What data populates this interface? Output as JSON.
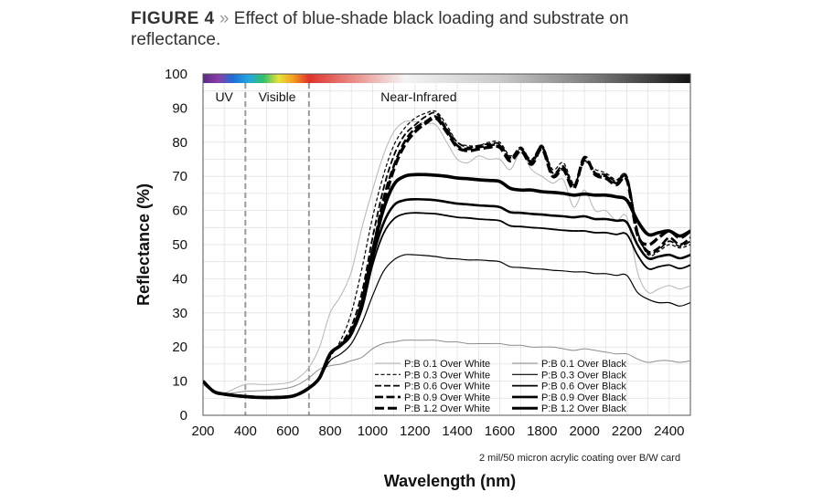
{
  "figure": {
    "label": "FIGURE 4",
    "separator": "»",
    "caption": "Effect of blue-shade black loading and substrate on reflectance."
  },
  "chart_data": {
    "type": "line",
    "title": "Effect of blue-shade black loading and substrate on reflectance.",
    "xlabel": "Wavelength (nm)",
    "ylabel": "Reflectance (%)",
    "xlim": [
      200,
      2500
    ],
    "ylim": [
      0,
      100
    ],
    "xticks": [
      200,
      400,
      600,
      800,
      1000,
      1200,
      1400,
      1600,
      1800,
      2000,
      2200,
      2400
    ],
    "yticks": [
      0,
      10,
      20,
      30,
      40,
      50,
      60,
      70,
      80,
      90,
      100
    ],
    "grid": true,
    "legend_position": "bottom-center",
    "regions": [
      {
        "label": "UV",
        "from": 200,
        "to": 400
      },
      {
        "label": "Visible",
        "from": 400,
        "to": 700
      },
      {
        "label": "Near-Infrared",
        "from": 700,
        "to": 2500
      }
    ],
    "region_boundaries": [
      400,
      700
    ],
    "spectrum_band_colors": [
      "#5b2a86",
      "#8a3da8",
      "#1f6fd6",
      "#22a6e0",
      "#33c06a",
      "#e8e23a",
      "#f29a1f",
      "#e0332b",
      "#f4f4f4",
      "#c9c9c9",
      "#7a7a7a",
      "#141414"
    ],
    "annotation": "2 mil/50 micron acrylic coating over B/W card",
    "x": [
      200,
      250,
      300,
      400,
      500,
      600,
      650,
      700,
      750,
      800,
      850,
      900,
      950,
      1000,
      1050,
      1100,
      1150,
      1200,
      1250,
      1300,
      1350,
      1400,
      1450,
      1500,
      1550,
      1600,
      1650,
      1700,
      1750,
      1800,
      1850,
      1900,
      1950,
      2000,
      2050,
      2100,
      2150,
      2200,
      2250,
      2300,
      2350,
      2400,
      2450,
      2500
    ],
    "series": [
      {
        "name": "P:B 0.1 Over White",
        "color": "#b5b5b5",
        "width": 1.0,
        "dash": "",
        "values": [
          9,
          7,
          6.5,
          9,
          9,
          9.5,
          11,
          14,
          20,
          30,
          35,
          42,
          55,
          66,
          76,
          83,
          86,
          86,
          85.5,
          85,
          80,
          75,
          74,
          76,
          75,
          75,
          72,
          77,
          72,
          70,
          68,
          69,
          61,
          66,
          60,
          60,
          57,
          58,
          42,
          36,
          37,
          38,
          37,
          38
        ]
      },
      {
        "name": "P:B 0.3 Over White",
        "color": "#000000",
        "width": 1.2,
        "dash": "4 2.5",
        "values": [
          10,
          7,
          6.2,
          5.5,
          5.2,
          5.4,
          6.2,
          8,
          11,
          17,
          22,
          30,
          43,
          58,
          70,
          79,
          84,
          87,
          88.5,
          89,
          85,
          80,
          79,
          79,
          80,
          80,
          76,
          78,
          75,
          79,
          72,
          74,
          68,
          74,
          72,
          71,
          69,
          70,
          54,
          47,
          48,
          50,
          49,
          50
        ]
      },
      {
        "name": "P:B 0.6 Over White",
        "color": "#000000",
        "width": 1.8,
        "dash": "7 3",
        "values": [
          10,
          7,
          6.2,
          5.5,
          5.2,
          5.4,
          6.2,
          8,
          11,
          18,
          21,
          26,
          36,
          52,
          66,
          76,
          82,
          85,
          87.5,
          88.5,
          84,
          80,
          78.5,
          79,
          79.5,
          79.5,
          75.5,
          78.5,
          74.5,
          79,
          71,
          73,
          67.5,
          74.5,
          71,
          70.5,
          68.5,
          70,
          54,
          47.5,
          48.5,
          51,
          49.5,
          51
        ]
      },
      {
        "name": "P:B 0.9 Over White",
        "color": "#000000",
        "width": 2.6,
        "dash": "9 3.5",
        "values": [
          10,
          7,
          6.2,
          5.5,
          5.2,
          5.4,
          6.2,
          8,
          11,
          18,
          20.5,
          25,
          33,
          48,
          63,
          73,
          80,
          84,
          86,
          87.5,
          83.5,
          79,
          78,
          78.5,
          79,
          79,
          75,
          78,
          74,
          78.5,
          70.5,
          72.5,
          67,
          75,
          71,
          70,
          68,
          69.5,
          53.5,
          48,
          49,
          52,
          50,
          52
        ]
      },
      {
        "name": "P:B 1.2 Over White",
        "color": "#000000",
        "width": 3.4,
        "dash": "10 4",
        "values": [
          10,
          7,
          6.2,
          5.5,
          5.2,
          5.4,
          6.2,
          8,
          11,
          18,
          20.5,
          24,
          32,
          46,
          61,
          72,
          79,
          83,
          85.5,
          87,
          83,
          78.5,
          77.5,
          78,
          78.5,
          78.5,
          74.5,
          77.5,
          73.5,
          78,
          70,
          72,
          66.5,
          75.5,
          70.5,
          69.5,
          67.5,
          69,
          53,
          50,
          52,
          54,
          52,
          54
        ]
      },
      {
        "name": "P:B 0.1 Over Black",
        "color": "#8c8c8c",
        "width": 1.0,
        "dash": "",
        "values": [
          9,
          7,
          6.3,
          7,
          7.3,
          8,
          9,
          11,
          13.5,
          14.5,
          15,
          16,
          17,
          19.5,
          21,
          21.5,
          22,
          22,
          22,
          22,
          21.5,
          21.5,
          21,
          21,
          21,
          21,
          20.5,
          20.5,
          20,
          20,
          20,
          19.5,
          19,
          19.5,
          19,
          18.5,
          18,
          18,
          16.5,
          15.5,
          16,
          16,
          15.5,
          16
        ]
      },
      {
        "name": "P:B 0.3 Over Black",
        "color": "#000000",
        "width": 1.2,
        "dash": "",
        "values": [
          10,
          7,
          6.2,
          5.5,
          5.2,
          5.4,
          6.2,
          8,
          11,
          16,
          18,
          21,
          27,
          35,
          42,
          45.5,
          47,
          47,
          46.8,
          46.5,
          46,
          45.8,
          45.5,
          45.5,
          45.3,
          45,
          43.5,
          43.3,
          43,
          42.8,
          42.5,
          42.3,
          42,
          42,
          41.5,
          41.5,
          41,
          41,
          36,
          34,
          33,
          33,
          32,
          33
        ]
      },
      {
        "name": "P:B 0.6 Over Black",
        "color": "#000000",
        "width": 1.8,
        "dash": "",
        "values": [
          10,
          7,
          6.2,
          5.5,
          5.2,
          5.4,
          6.2,
          8,
          11,
          18,
          20.5,
          24,
          31,
          44,
          53,
          57.5,
          59,
          59.3,
          59.2,
          59,
          58.5,
          58,
          57.8,
          57.5,
          57.3,
          57,
          55.5,
          55.3,
          55,
          54.8,
          54.5,
          54.2,
          54,
          54,
          53.5,
          53.5,
          53,
          53,
          47,
          43,
          43.5,
          44,
          43,
          44
        ]
      },
      {
        "name": "P:B 0.9 Over Black",
        "color": "#000000",
        "width": 2.6,
        "dash": "",
        "values": [
          10,
          7,
          6.2,
          5.5,
          5.2,
          5.4,
          6.2,
          8,
          11,
          18,
          20.5,
          24,
          32,
          46,
          56,
          61.5,
          63,
          63.3,
          63.2,
          63,
          62.5,
          62,
          61.8,
          61.5,
          61.3,
          61,
          59.5,
          59.3,
          59,
          58.8,
          58.5,
          58.3,
          58,
          58.3,
          57.5,
          57.5,
          57,
          56.5,
          50,
          46,
          46.5,
          47,
          46,
          47
        ]
      },
      {
        "name": "P:B 1.2 Over Black",
        "color": "#000000",
        "width": 3.6,
        "dash": "",
        "values": [
          10,
          7,
          6.2,
          5.5,
          5.2,
          5.4,
          6.2,
          8,
          11,
          18,
          20.5,
          24,
          33,
          48,
          60,
          67.5,
          70,
          70.5,
          70.5,
          70.3,
          70,
          69.5,
          69.3,
          69,
          68.8,
          68.5,
          66.5,
          66,
          66,
          65.5,
          65.3,
          65,
          64.5,
          64.8,
          64.5,
          64.5,
          64,
          63,
          57,
          53,
          53.5,
          54,
          52.5,
          54
        ]
      }
    ]
  }
}
